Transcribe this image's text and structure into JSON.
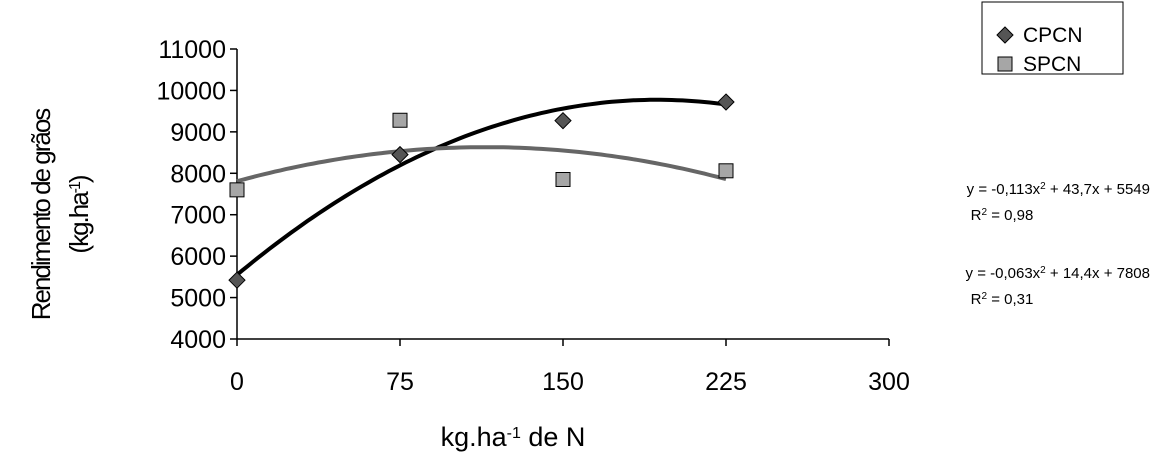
{
  "chart_data": {
    "type": "scatter",
    "xlabel_main": "kg.ha",
    "xlabel_sup": "-1",
    "xlabel_tail": " de N",
    "ylabel_line1": "Rendimento de grãos",
    "ylabel_line2_pre": "(kg.ha",
    "ylabel_line2_sup": "-1",
    "ylabel_line2_post": ")",
    "xlim": [
      0,
      300
    ],
    "ylim": [
      4000,
      11000
    ],
    "x_ticks": [
      0,
      75,
      150,
      225,
      300
    ],
    "y_ticks": [
      4000,
      5000,
      6000,
      7000,
      8000,
      9000,
      10000,
      11000
    ],
    "x_tick_labels": [
      "0",
      "75",
      "150",
      "225",
      "300"
    ],
    "y_tick_labels": [
      "4000",
      "5000",
      "6000",
      "7000",
      "8000",
      "9000",
      "10000",
      "11000"
    ],
    "grid": false,
    "legend_position": "top-right",
    "series": [
      {
        "name": "CPCN",
        "marker": "diamond",
        "color": "#555555",
        "points": [
          {
            "x": 0,
            "y": 5420
          },
          {
            "x": 75,
            "y": 8450
          },
          {
            "x": 150,
            "y": 9270
          },
          {
            "x": 225,
            "y": 9720
          }
        ],
        "trend": {
          "a": -0.113,
          "b": 43.7,
          "c": 5549
        },
        "equation": {
          "pre": "y = -0,113x",
          "sup": "2",
          "post": " + 43,7x + 5549"
        },
        "r2": {
          "pre": "R",
          "sup": "2",
          "post": " = 0,98"
        }
      },
      {
        "name": "SPCN",
        "marker": "square",
        "color": "#a6a6a6",
        "points": [
          {
            "x": 0,
            "y": 7600
          },
          {
            "x": 75,
            "y": 9280
          },
          {
            "x": 150,
            "y": 7850
          },
          {
            "x": 225,
            "y": 8060
          }
        ],
        "trend": {
          "a": -0.063,
          "b": 14.4,
          "c": 7808
        },
        "equation": {
          "pre": "y = -0,063x",
          "sup": "2",
          "post": " + 14,4x + 7808"
        },
        "r2": {
          "pre": "R",
          "sup": "2",
          "post": " = 0,31"
        }
      }
    ]
  }
}
